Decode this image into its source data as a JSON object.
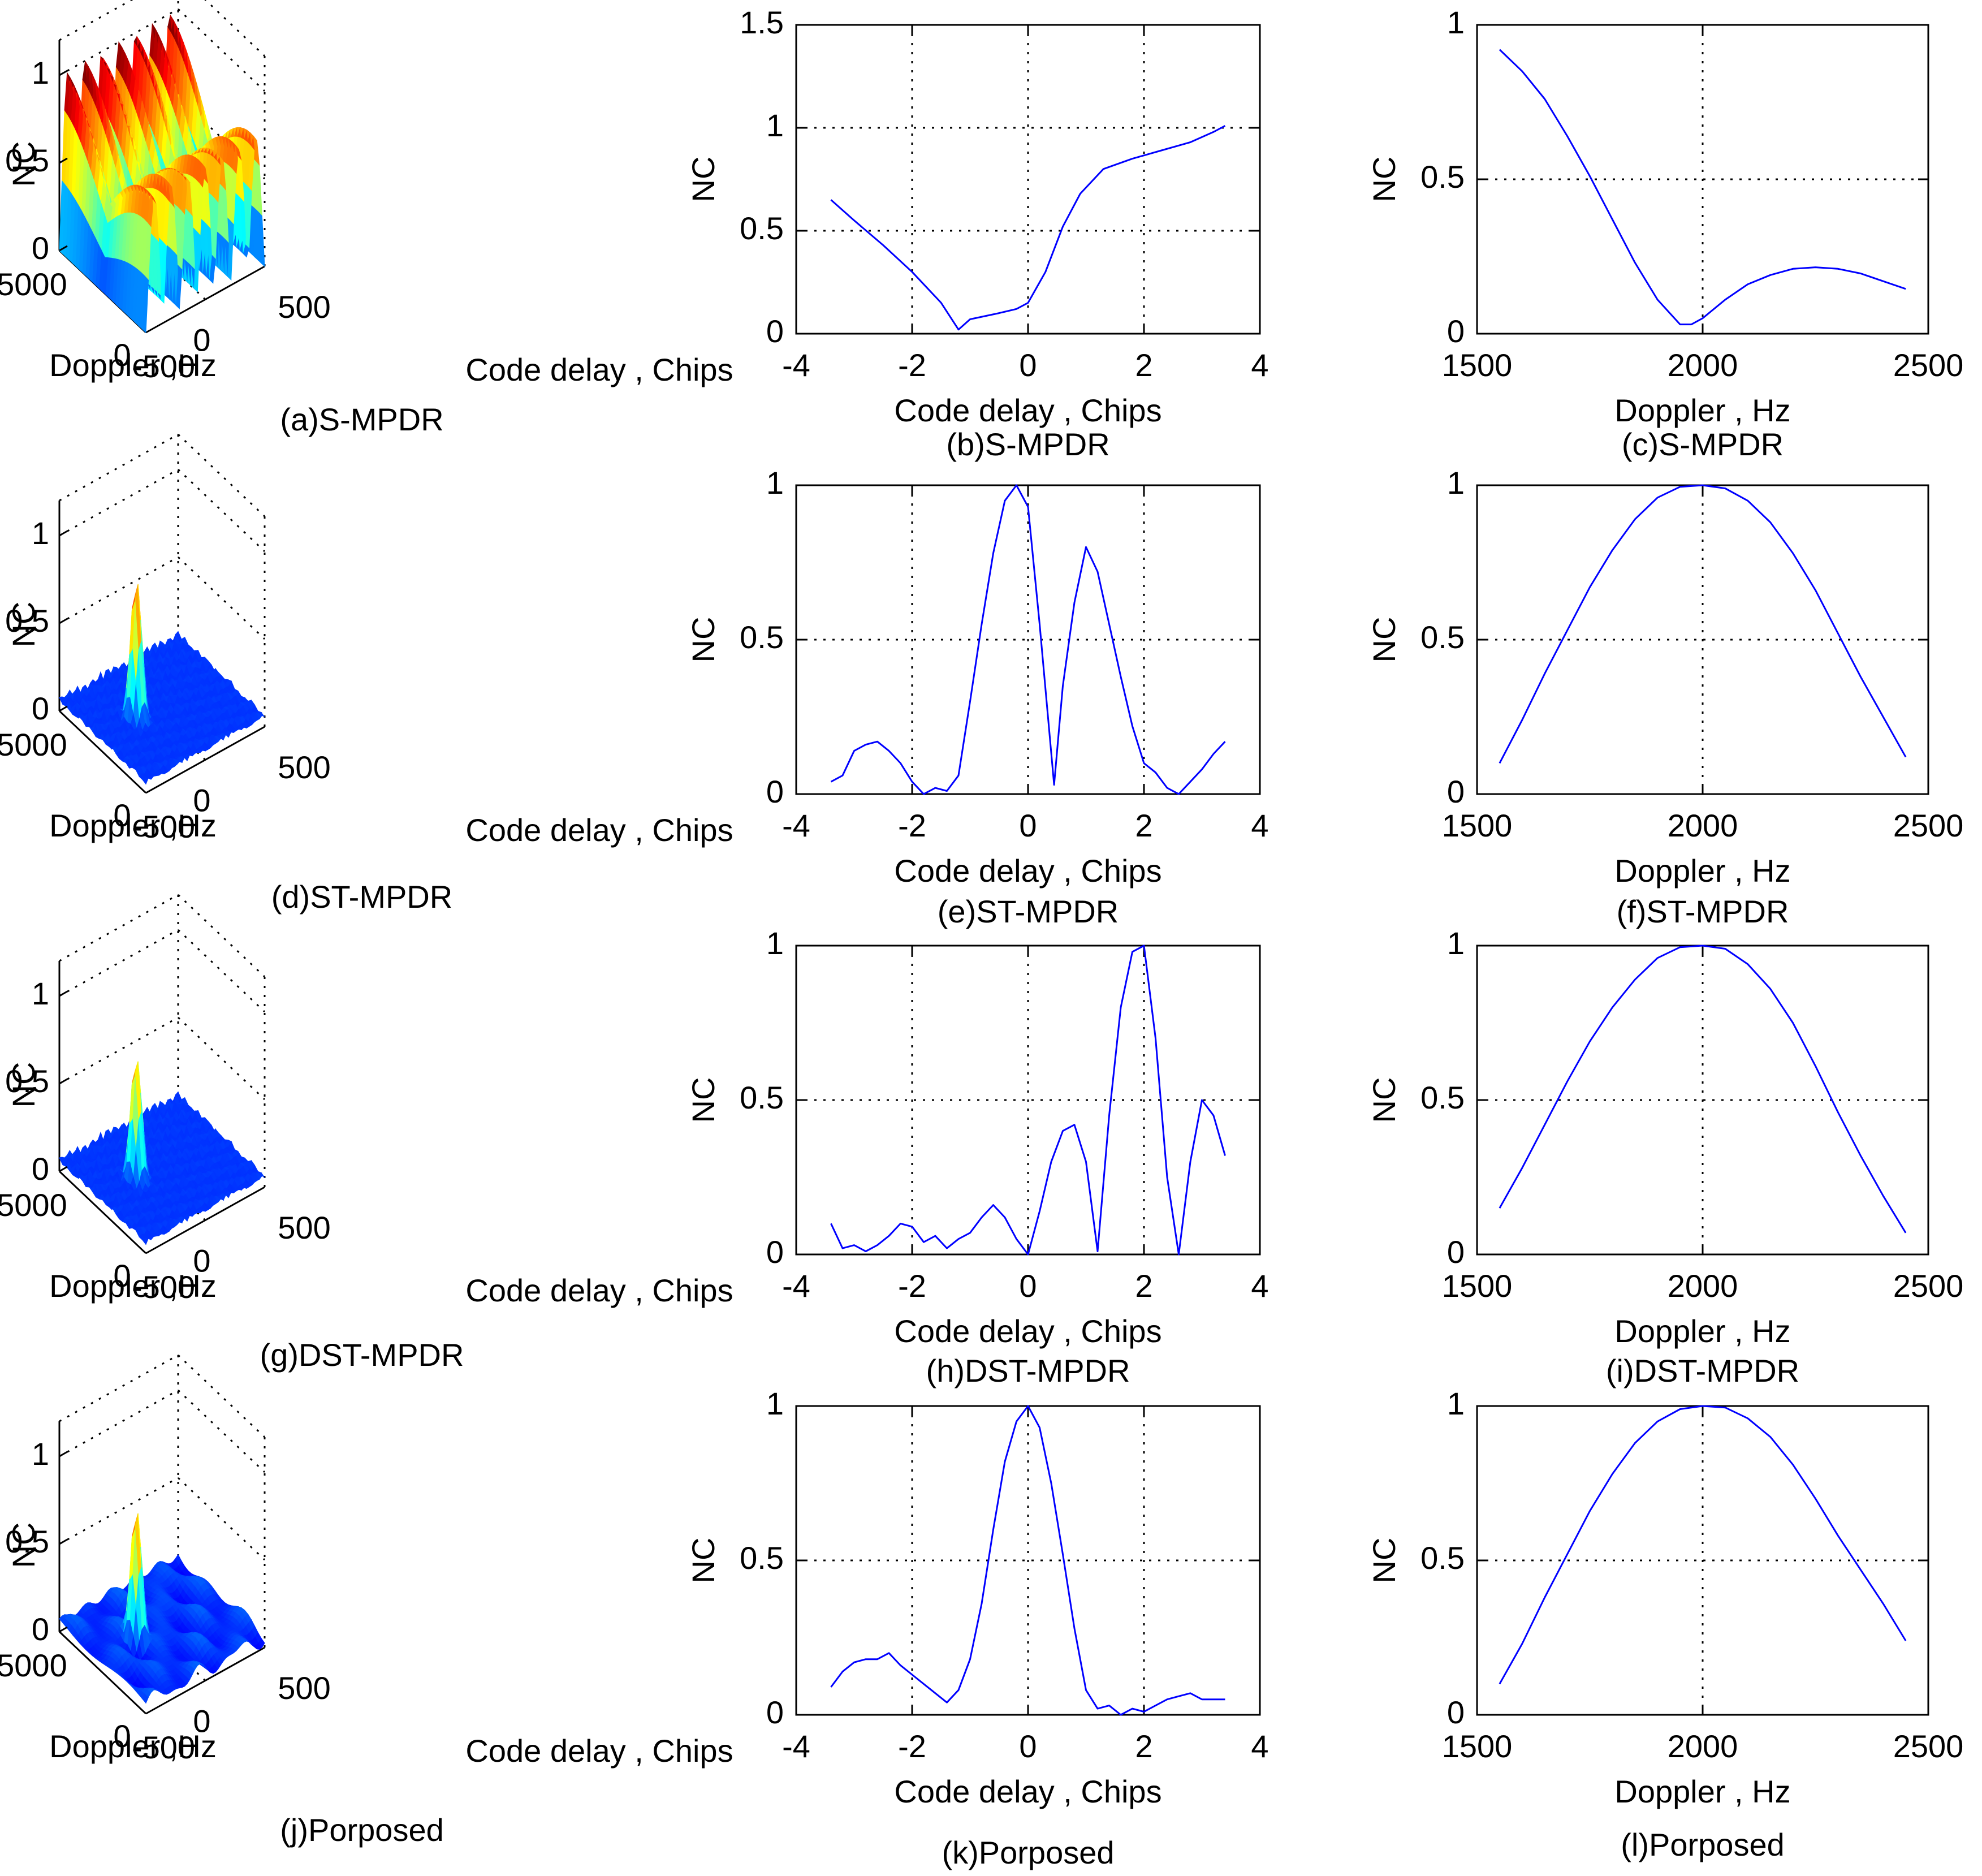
{
  "chart_data": [
    {
      "id": "a",
      "type": "surface3d",
      "caption": "(a)S-MPDR",
      "zlabel": "NC",
      "xlabel": "Code delay , Chips",
      "ylabel": "Doppler ,Hz",
      "zticks": [
        "0",
        "0.5",
        "1"
      ],
      "xticks": [
        "-500",
        "0",
        "500"
      ],
      "yticks": [
        "0",
        "5000"
      ],
      "zlim": [
        0,
        1.2
      ],
      "pattern": "multi-peak ridges",
      "peaks": 14,
      "peak_value": 1.0
    },
    {
      "id": "b",
      "type": "line",
      "caption": "(b)S-MPDR",
      "xlabel": "Code delay , Chips",
      "ylabel": "NC",
      "xlim": [
        -4,
        4
      ],
      "ylim": [
        0,
        1.5
      ],
      "xticks": [
        -4,
        -2,
        0,
        2,
        4
      ],
      "yticks": [
        0,
        0.5,
        1,
        1.5
      ],
      "xtick_labels": [
        "-4",
        "-2",
        "0",
        "2",
        "4"
      ],
      "ytick_labels": [
        "0",
        "0.5",
        "1",
        "1.5"
      ],
      "x": [
        -3.4,
        -3.0,
        -2.5,
        -2.0,
        -1.5,
        -1.2,
        -1.0,
        -0.5,
        -0.2,
        0.0,
        0.3,
        0.6,
        0.9,
        1.3,
        1.8,
        2.3,
        2.8,
        3.2,
        3.4
      ],
      "y": [
        0.65,
        0.55,
        0.43,
        0.3,
        0.15,
        0.02,
        0.07,
        0.1,
        0.12,
        0.15,
        0.3,
        0.52,
        0.68,
        0.8,
        0.85,
        0.89,
        0.93,
        0.98,
        1.01
      ]
    },
    {
      "id": "c",
      "type": "line",
      "caption": "(c)S-MPDR",
      "xlabel": "Doppler , Hz",
      "ylabel": "NC",
      "xlim": [
        1500,
        2500
      ],
      "ylim": [
        0,
        1
      ],
      "xticks": [
        1500,
        2000,
        2500
      ],
      "yticks": [
        0,
        0.5,
        1
      ],
      "xtick_labels": [
        "1500",
        "2000",
        "2500"
      ],
      "ytick_labels": [
        "0",
        "0.5",
        "1"
      ],
      "x": [
        1550,
        1600,
        1650,
        1700,
        1750,
        1800,
        1850,
        1900,
        1950,
        1975,
        2000,
        2050,
        2100,
        2150,
        2200,
        2250,
        2300,
        2350,
        2400,
        2450
      ],
      "y": [
        0.92,
        0.85,
        0.76,
        0.64,
        0.51,
        0.37,
        0.23,
        0.11,
        0.03,
        0.03,
        0.05,
        0.11,
        0.16,
        0.19,
        0.21,
        0.215,
        0.21,
        0.195,
        0.17,
        0.145
      ]
    },
    {
      "id": "d",
      "type": "surface3d",
      "caption": "(d)ST-MPDR",
      "zlabel": "NC",
      "xlabel": "Code delay , Chips",
      "ylabel": "Doppler ,Hz",
      "zticks": [
        "0",
        "0.5",
        "1"
      ],
      "xticks": [
        "-500",
        "0",
        "500"
      ],
      "yticks": [
        "0",
        "5000"
      ],
      "zlim": [
        0,
        1.2
      ],
      "pattern": "single peak with noise floor",
      "peak_value": 0.85
    },
    {
      "id": "e",
      "type": "line",
      "caption": "(e)ST-MPDR",
      "xlabel": "Code delay , Chips",
      "ylabel": "NC",
      "xlim": [
        -4,
        4
      ],
      "ylim": [
        0,
        1
      ],
      "xticks": [
        -4,
        -2,
        0,
        2,
        4
      ],
      "yticks": [
        0,
        0.5,
        1
      ],
      "xtick_labels": [
        "-4",
        "-2",
        "0",
        "2",
        "4"
      ],
      "ytick_labels": [
        "0",
        "0.5",
        "1"
      ],
      "x": [
        -3.4,
        -3.2,
        -3.0,
        -2.8,
        -2.6,
        -2.4,
        -2.2,
        -2.0,
        -1.8,
        -1.6,
        -1.4,
        -1.2,
        -1.0,
        -0.8,
        -0.6,
        -0.4,
        -0.2,
        0.0,
        0.2,
        0.45,
        0.6,
        0.8,
        1.0,
        1.2,
        1.4,
        1.6,
        1.8,
        2.0,
        2.2,
        2.4,
        2.6,
        2.8,
        3.0,
        3.2,
        3.4
      ],
      "y": [
        0.04,
        0.06,
        0.14,
        0.16,
        0.17,
        0.14,
        0.1,
        0.04,
        0.0,
        0.02,
        0.01,
        0.06,
        0.3,
        0.55,
        0.78,
        0.95,
        1.0,
        0.93,
        0.55,
        0.03,
        0.35,
        0.62,
        0.8,
        0.72,
        0.55,
        0.38,
        0.22,
        0.1,
        0.07,
        0.02,
        0.0,
        0.04,
        0.08,
        0.13,
        0.17
      ]
    },
    {
      "id": "f",
      "type": "line",
      "caption": "(f)ST-MPDR",
      "xlabel": "Doppler , Hz",
      "ylabel": "NC",
      "xlim": [
        1500,
        2500
      ],
      "ylim": [
        0,
        1
      ],
      "xticks": [
        1500,
        2000,
        2500
      ],
      "yticks": [
        0,
        0.5,
        1
      ],
      "xtick_labels": [
        "1500",
        "2000",
        "2500"
      ],
      "ytick_labels": [
        "0",
        "0.5",
        "1"
      ],
      "x": [
        1550,
        1600,
        1650,
        1700,
        1750,
        1800,
        1850,
        1900,
        1950,
        2000,
        2050,
        2100,
        2150,
        2200,
        2250,
        2300,
        2350,
        2400,
        2450
      ],
      "y": [
        0.1,
        0.24,
        0.39,
        0.53,
        0.67,
        0.79,
        0.89,
        0.96,
        0.995,
        1.0,
        0.99,
        0.95,
        0.88,
        0.78,
        0.66,
        0.52,
        0.38,
        0.25,
        0.12
      ]
    },
    {
      "id": "g",
      "type": "surface3d",
      "caption": "(g)DST-MPDR",
      "zlabel": "NC",
      "xlabel": "Code delay , Chips",
      "ylabel": "Doppler ,Hz",
      "zticks": [
        "0",
        "0.5",
        "1"
      ],
      "xticks": [
        "-500",
        "0",
        "500"
      ],
      "yticks": [
        "0",
        "5000"
      ],
      "zlim": [
        0,
        1.2
      ],
      "pattern": "single peak with noise floor",
      "peak_value": 0.75
    },
    {
      "id": "h",
      "type": "line",
      "caption": "(h)DST-MPDR",
      "xlabel": "Code delay , Chips",
      "ylabel": "NC",
      "xlim": [
        -4,
        4
      ],
      "ylim": [
        0,
        1
      ],
      "xticks": [
        -4,
        -2,
        0,
        2,
        4
      ],
      "yticks": [
        0,
        0.5,
        1
      ],
      "xtick_labels": [
        "-4",
        "-2",
        "0",
        "2",
        "4"
      ],
      "ytick_labels": [
        "0",
        "0.5",
        "1"
      ],
      "x": [
        -3.4,
        -3.2,
        -3.0,
        -2.8,
        -2.6,
        -2.4,
        -2.2,
        -2.0,
        -1.8,
        -1.6,
        -1.4,
        -1.2,
        -1.0,
        -0.8,
        -0.6,
        -0.4,
        -0.2,
        0.0,
        0.2,
        0.4,
        0.6,
        0.8,
        1.0,
        1.2,
        1.4,
        1.6,
        1.8,
        2.0,
        2.2,
        2.4,
        2.6,
        2.8,
        3.0,
        3.2,
        3.4
      ],
      "y": [
        0.1,
        0.02,
        0.03,
        0.01,
        0.03,
        0.06,
        0.1,
        0.09,
        0.04,
        0.06,
        0.02,
        0.05,
        0.07,
        0.12,
        0.16,
        0.12,
        0.05,
        0.0,
        0.14,
        0.3,
        0.4,
        0.42,
        0.3,
        0.01,
        0.45,
        0.8,
        0.98,
        1.0,
        0.7,
        0.25,
        0.0,
        0.3,
        0.5,
        0.45,
        0.32
      ]
    },
    {
      "id": "i",
      "type": "line",
      "caption": "(i)DST-MPDR",
      "xlabel": "Doppler , Hz",
      "ylabel": "NC",
      "xlim": [
        1500,
        2500
      ],
      "ylim": [
        0,
        1
      ],
      "xticks": [
        1500,
        2000,
        2500
      ],
      "yticks": [
        0,
        0.5,
        1
      ],
      "xtick_labels": [
        "1500",
        "2000",
        "2500"
      ],
      "ytick_labels": [
        "0",
        "0.5",
        "1"
      ],
      "x": [
        1550,
        1600,
        1650,
        1700,
        1750,
        1800,
        1850,
        1900,
        1950,
        2000,
        2050,
        2100,
        2150,
        2200,
        2250,
        2300,
        2350,
        2400,
        2450
      ],
      "y": [
        0.15,
        0.28,
        0.42,
        0.56,
        0.69,
        0.8,
        0.89,
        0.96,
        0.995,
        1.0,
        0.99,
        0.94,
        0.86,
        0.75,
        0.61,
        0.46,
        0.32,
        0.19,
        0.07
      ]
    },
    {
      "id": "j",
      "type": "surface3d",
      "caption": "(j)Porposed",
      "zlabel": "NC",
      "xlabel": "Code delay , Chips",
      "ylabel": "Doppler ,Hz",
      "zticks": [
        "0",
        "0.5",
        "1"
      ],
      "xticks": [
        "-500",
        "0",
        "500"
      ],
      "yticks": [
        "0",
        "5000"
      ],
      "zlim": [
        0,
        1.2
      ],
      "pattern": "single peak with smooth floor",
      "peak_value": 0.8
    },
    {
      "id": "k",
      "type": "line",
      "caption": "(k)Porposed",
      "xlabel": "Code delay , Chips",
      "ylabel": "NC",
      "xlim": [
        -4,
        4
      ],
      "ylim": [
        0,
        1
      ],
      "xticks": [
        -4,
        -2,
        0,
        2,
        4
      ],
      "yticks": [
        0,
        0.5,
        1
      ],
      "xtick_labels": [
        "-4",
        "-2",
        "0",
        "2",
        "4"
      ],
      "ytick_labels": [
        "0",
        "0.5",
        "1"
      ],
      "x": [
        -3.4,
        -3.2,
        -3.0,
        -2.8,
        -2.6,
        -2.4,
        -2.2,
        -2.0,
        -1.8,
        -1.6,
        -1.4,
        -1.2,
        -1.0,
        -0.8,
        -0.6,
        -0.4,
        -0.2,
        0.0,
        0.2,
        0.4,
        0.6,
        0.8,
        1.0,
        1.2,
        1.4,
        1.6,
        1.8,
        2.0,
        2.2,
        2.4,
        2.6,
        2.8,
        3.0,
        3.2,
        3.4
      ],
      "y": [
        0.09,
        0.14,
        0.17,
        0.18,
        0.18,
        0.2,
        0.16,
        0.13,
        0.1,
        0.07,
        0.04,
        0.08,
        0.18,
        0.36,
        0.6,
        0.82,
        0.95,
        1.0,
        0.93,
        0.75,
        0.52,
        0.28,
        0.08,
        0.02,
        0.03,
        0.0,
        0.02,
        0.01,
        0.03,
        0.05,
        0.06,
        0.07,
        0.05,
        0.05,
        0.05
      ]
    },
    {
      "id": "l",
      "type": "line",
      "caption": "(l)Porposed",
      "xlabel": "Doppler , Hz",
      "ylabel": "NC",
      "xlim": [
        1500,
        2500
      ],
      "ylim": [
        0,
        1
      ],
      "xticks": [
        1500,
        2000,
        2500
      ],
      "yticks": [
        0,
        0.5,
        1
      ],
      "xtick_labels": [
        "1500",
        "2000",
        "2500"
      ],
      "ytick_labels": [
        "0",
        "0.5",
        "1"
      ],
      "x": [
        1550,
        1600,
        1650,
        1700,
        1750,
        1800,
        1850,
        1900,
        1950,
        2000,
        2050,
        2100,
        2150,
        2200,
        2250,
        2300,
        2350,
        2400,
        2450
      ],
      "y": [
        0.1,
        0.23,
        0.38,
        0.52,
        0.66,
        0.78,
        0.88,
        0.95,
        0.99,
        1.0,
        0.995,
        0.96,
        0.9,
        0.81,
        0.7,
        0.58,
        0.47,
        0.36,
        0.24
      ]
    }
  ]
}
